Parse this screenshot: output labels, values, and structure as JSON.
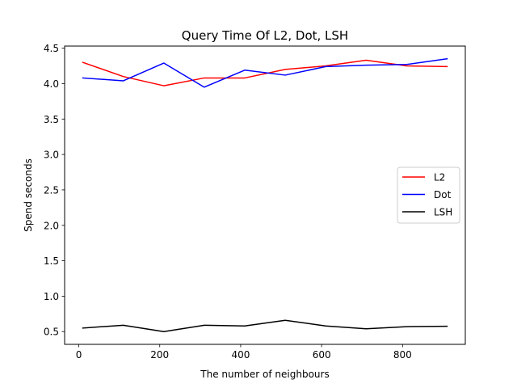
{
  "chart_data": {
    "type": "line",
    "title": "Query Time Of L2, Dot, LSH",
    "xlabel": "The number of neighbours",
    "ylabel": "Spend seconds",
    "x": [
      10,
      110,
      210,
      310,
      410,
      510,
      610,
      710,
      810,
      910
    ],
    "xlim": [
      -35,
      955
    ],
    "ylim": [
      0.32,
      4.53
    ],
    "xticks": [
      0,
      200,
      400,
      600,
      800
    ],
    "xtick_labels": [
      "0",
      "200",
      "400",
      "600",
      "800"
    ],
    "yticks": [
      0.5,
      1.0,
      1.5,
      2.0,
      2.5,
      3.0,
      3.5,
      4.0,
      4.5
    ],
    "ytick_labels": [
      "0.5",
      "1.0",
      "1.5",
      "2.0",
      "2.5",
      "3.0",
      "3.5",
      "4.0",
      "4.5"
    ],
    "grid": false,
    "legend_position": "center-right",
    "series": [
      {
        "name": "L2",
        "color": "#ff0000",
        "values": [
          4.3,
          4.1,
          3.97,
          4.08,
          4.08,
          4.2,
          4.25,
          4.33,
          4.25,
          4.24
        ]
      },
      {
        "name": "Dot",
        "color": "#0000ff",
        "values": [
          4.08,
          4.04,
          4.29,
          3.95,
          4.19,
          4.12,
          4.24,
          4.26,
          4.27,
          4.35
        ]
      },
      {
        "name": "LSH",
        "color": "#000000",
        "values": [
          0.55,
          0.59,
          0.5,
          0.59,
          0.58,
          0.66,
          0.58,
          0.54,
          0.57,
          0.575
        ]
      }
    ]
  }
}
